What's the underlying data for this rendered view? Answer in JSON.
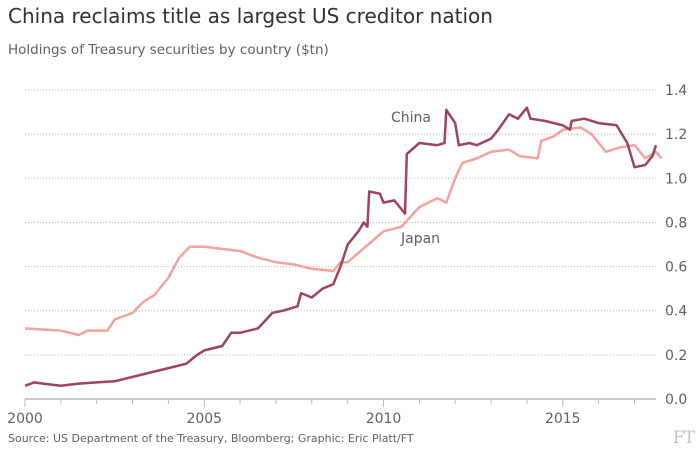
{
  "chart_data": {
    "type": "line",
    "title": "China reclaims title as largest US creditor nation",
    "subtitle": "Holdings of Treasury securities by country ($tn)",
    "xlabel": "",
    "ylabel": "",
    "xlim": [
      2000,
      2017.6
    ],
    "ylim": [
      0,
      1.4
    ],
    "x_ticks": [
      "2000",
      "2005",
      "2010",
      "2015"
    ],
    "y_ticks": [
      "0.0",
      "0.2",
      "0.4",
      "0.6",
      "0.8",
      "1.0",
      "1.2",
      "1.4"
    ],
    "grid": true,
    "legend": "inline labels",
    "series": [
      {
        "name": "China",
        "color": "#9e4361",
        "x": [
          2000.0,
          2000.25,
          2000.5,
          2001.0,
          2001.5,
          2002.0,
          2002.5,
          2003.0,
          2003.5,
          2004.0,
          2004.5,
          2004.8,
          2005.0,
          2005.5,
          2005.75,
          2006.0,
          2006.5,
          2006.9,
          2007.2,
          2007.6,
          2007.7,
          2008.0,
          2008.3,
          2008.6,
          2008.8,
          2009.0,
          2009.3,
          2009.45,
          2009.55,
          2009.6,
          2009.9,
          2010.0,
          2010.3,
          2010.6,
          2010.65,
          2011.0,
          2011.5,
          2011.7,
          2011.75,
          2012.0,
          2012.1,
          2012.4,
          2012.6,
          2013.0,
          2013.2,
          2013.5,
          2013.75,
          2014.0,
          2014.1,
          2014.5,
          2015.0,
          2015.2,
          2015.25,
          2015.6,
          2016.0,
          2016.5,
          2016.8,
          2017.0,
          2017.3,
          2017.5,
          2017.6
        ],
        "values": [
          0.06,
          0.075,
          0.07,
          0.06,
          0.07,
          0.075,
          0.08,
          0.1,
          0.12,
          0.14,
          0.16,
          0.2,
          0.22,
          0.24,
          0.3,
          0.3,
          0.32,
          0.39,
          0.4,
          0.42,
          0.48,
          0.46,
          0.5,
          0.52,
          0.6,
          0.7,
          0.76,
          0.8,
          0.78,
          0.94,
          0.93,
          0.89,
          0.9,
          0.84,
          1.11,
          1.16,
          1.15,
          1.16,
          1.31,
          1.25,
          1.15,
          1.16,
          1.15,
          1.18,
          1.22,
          1.29,
          1.27,
          1.32,
          1.27,
          1.26,
          1.24,
          1.22,
          1.26,
          1.27,
          1.25,
          1.24,
          1.16,
          1.05,
          1.06,
          1.1,
          1.15
        ]
      },
      {
        "name": "Japan",
        "color": "#f4a29c",
        "x": [
          2000.0,
          2001.0,
          2001.5,
          2001.75,
          2002.3,
          2002.5,
          2003.0,
          2003.3,
          2003.6,
          2004.0,
          2004.3,
          2004.6,
          2005.0,
          2005.5,
          2006.0,
          2006.5,
          2007.0,
          2007.5,
          2008.0,
          2008.6,
          2008.8,
          2009.0,
          2009.5,
          2010.0,
          2010.5,
          2011.0,
          2011.5,
          2011.75,
          2012.0,
          2012.2,
          2012.6,
          2013.0,
          2013.5,
          2013.8,
          2014.3,
          2014.4,
          2014.75,
          2015.0,
          2015.5,
          2015.8,
          2016.2,
          2016.6,
          2017.0,
          2017.3,
          2017.6,
          2017.75
        ],
        "values": [
          0.32,
          0.31,
          0.29,
          0.31,
          0.31,
          0.36,
          0.39,
          0.44,
          0.47,
          0.55,
          0.64,
          0.69,
          0.69,
          0.68,
          0.67,
          0.64,
          0.62,
          0.61,
          0.59,
          0.58,
          0.62,
          0.62,
          0.69,
          0.76,
          0.78,
          0.87,
          0.91,
          0.89,
          1.0,
          1.07,
          1.09,
          1.12,
          1.13,
          1.1,
          1.09,
          1.17,
          1.19,
          1.22,
          1.23,
          1.2,
          1.12,
          1.14,
          1.15,
          1.09,
          1.12,
          1.09
        ]
      }
    ],
    "annotations": [
      "China",
      "Japan"
    ],
    "source": "Source: US Department of the Treasury, Bloomberg; Graphic: Eric Platt/FT",
    "logo": "FT"
  }
}
